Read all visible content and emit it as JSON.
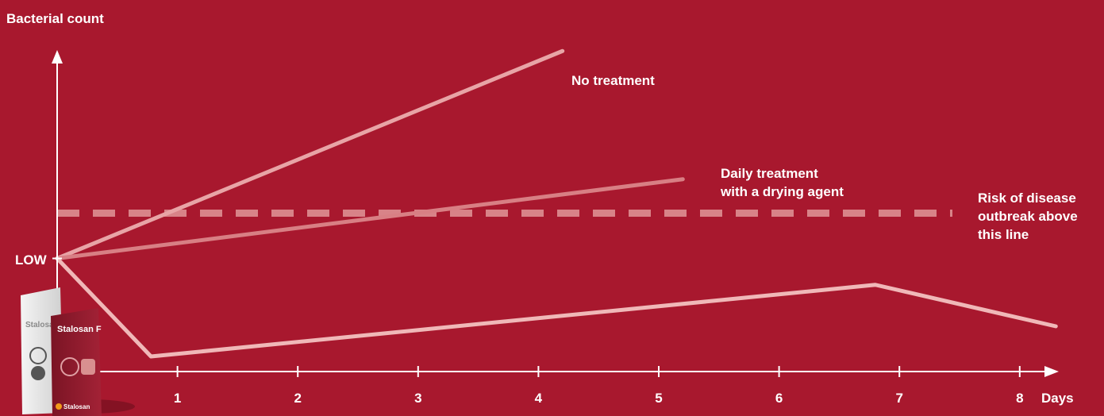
{
  "chart_data": {
    "type": "line",
    "ylabel": "Bacterial count",
    "xlabel": "Days",
    "x_ticks": [
      1,
      2,
      3,
      4,
      5,
      6,
      7,
      8
    ],
    "xlim": [
      0,
      8.5
    ],
    "ylim": [
      0,
      10
    ],
    "y_tick_label": "LOW",
    "low_level": 3,
    "threshold": {
      "value": 4.2,
      "label": "Risk of disease\noutbreak above\nthis line",
      "style": "dashed"
    },
    "series": [
      {
        "name": "No treatment",
        "x": [
          0,
          4.2
        ],
        "y": [
          3,
          8.5
        ]
      },
      {
        "name": "Daily treatment\nwith a drying agent",
        "x": [
          0,
          5.2
        ],
        "y": [
          3,
          5.1
        ]
      },
      {
        "name": "",
        "x": [
          0,
          0.78,
          6.8,
          8.3
        ],
        "y": [
          3,
          0.4,
          2.3,
          1.2
        ]
      }
    ],
    "colors": {
      "background": "#a8182e",
      "axis": "#ffffff",
      "no_treatment": "#e8a4a6",
      "drying_agent": "#d87f84",
      "stalosan": "#f0b8b8",
      "threshold": "#d88388"
    }
  },
  "products": {
    "bag_front_brand": "Stalosan F",
    "bag_back_brand": "Stalosan F",
    "bag_footer_brand": "Stalosan"
  }
}
